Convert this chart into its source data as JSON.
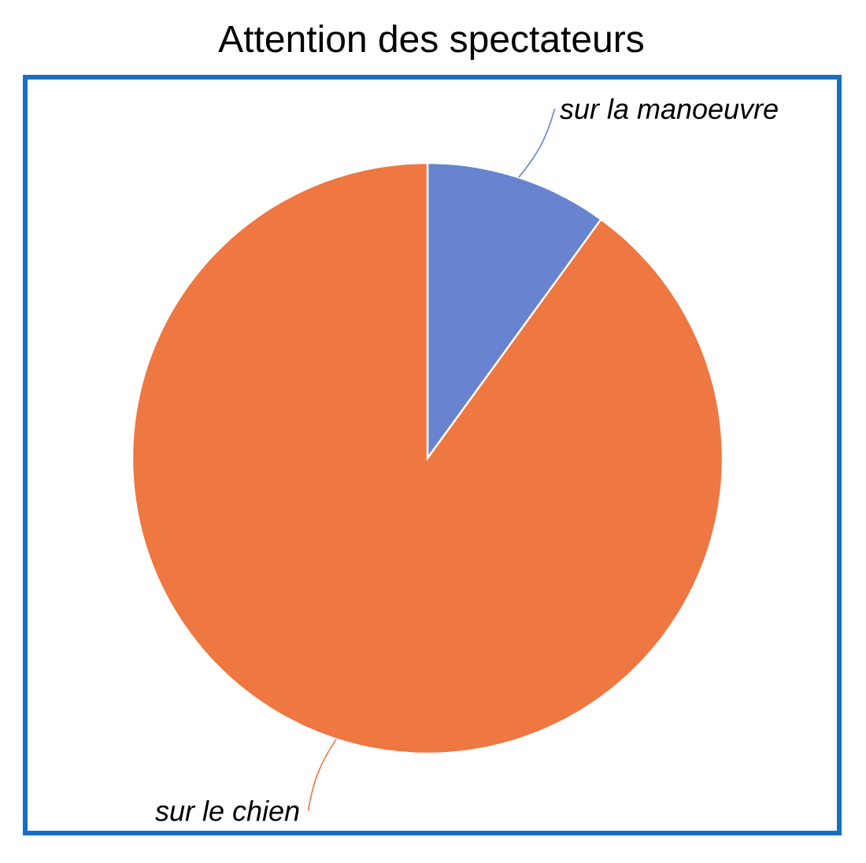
{
  "chart_data": {
    "type": "pie",
    "title": "Attention des spectateurs",
    "categories": [
      "sur la manoeuvre",
      "sur le chien"
    ],
    "values": [
      10,
      90
    ],
    "colors": [
      "#6884d1",
      "#ee7742"
    ]
  }
}
